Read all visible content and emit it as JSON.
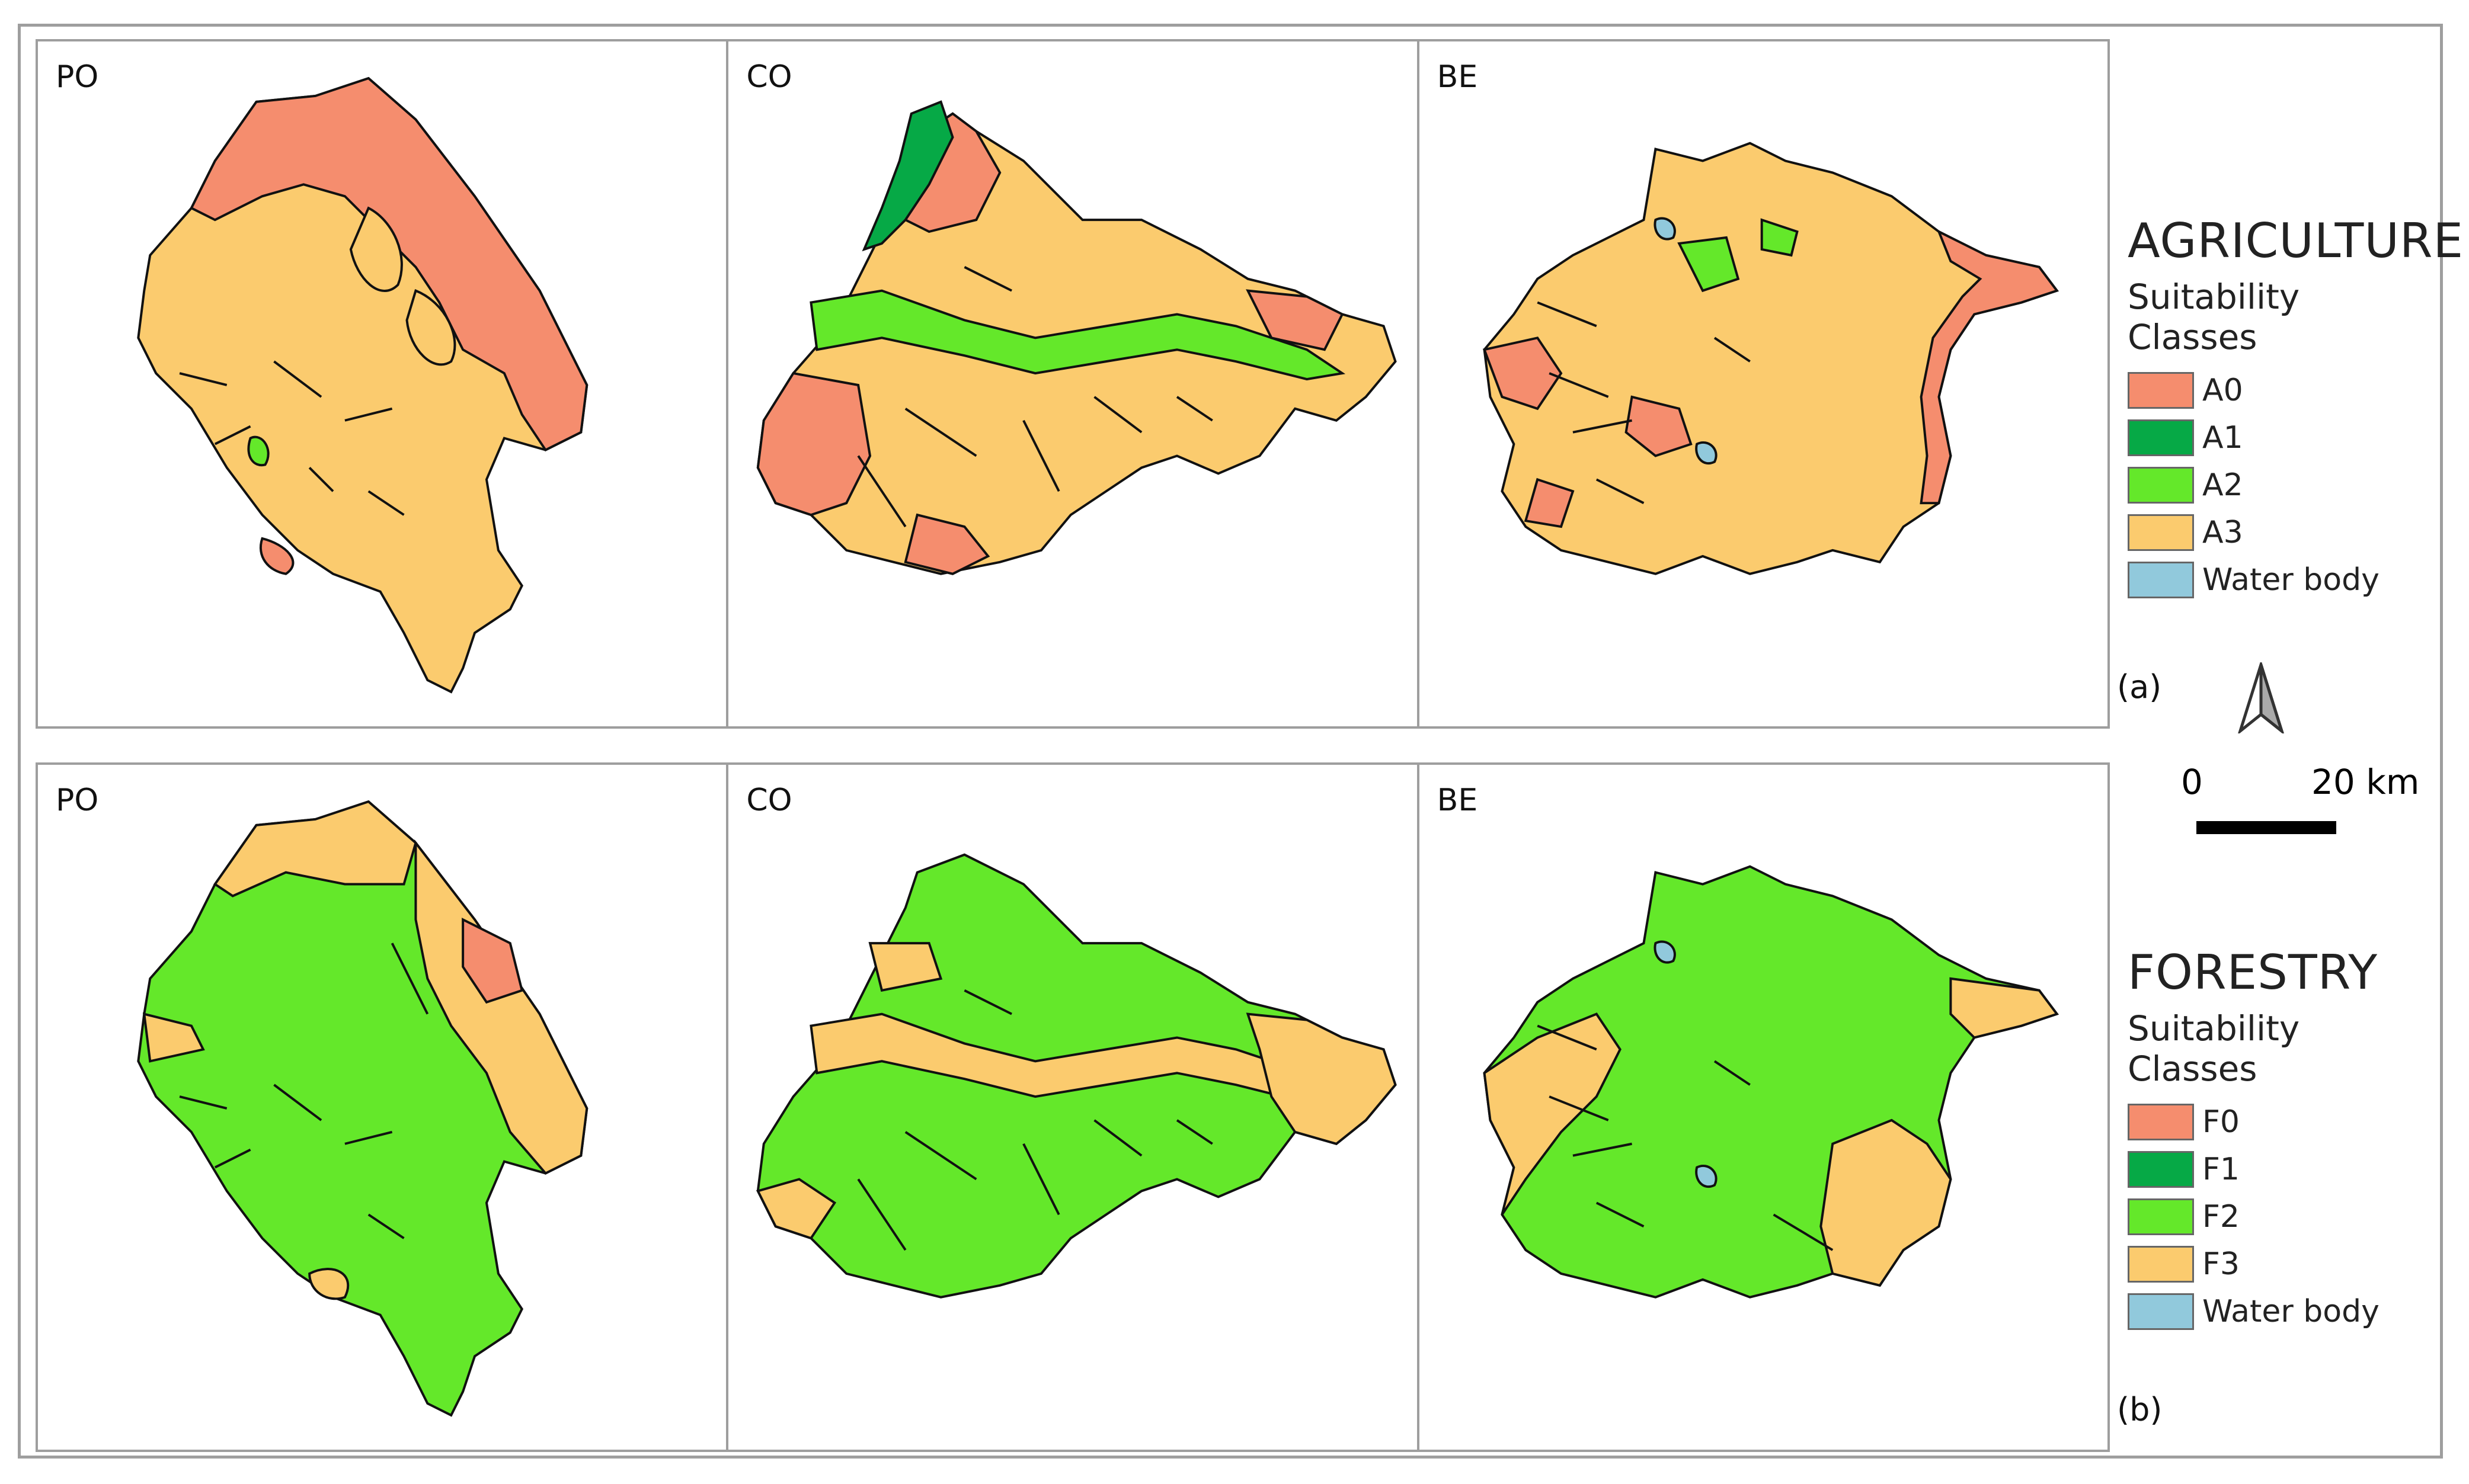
{
  "colors": {
    "A0": "#f58d6e",
    "A1": "#06a946",
    "A2": "#64e82a",
    "A3": "#fbcb6e",
    "water": "#91c9dc",
    "F0": "#f58d6e",
    "F1": "#06a946",
    "F2": "#64e82a",
    "F3": "#fbcb6e"
  },
  "panels": {
    "row_a": [
      "PO",
      "CO",
      "BE"
    ],
    "row_b": [
      "PO",
      "CO",
      "BE"
    ]
  },
  "legend_agri": {
    "title": "AGRICULTURE",
    "subtitle": "Suitability Classes",
    "items": [
      {
        "label": "A0",
        "color": "#f58d6e"
      },
      {
        "label": "A1",
        "color": "#06a946"
      },
      {
        "label": "A2",
        "color": "#64e82a"
      },
      {
        "label": "A3",
        "color": "#fbcb6e"
      },
      {
        "label": "Water body",
        "color": "#91c9dc"
      }
    ]
  },
  "legend_forest": {
    "title": "FORESTRY",
    "subtitle": "Suitability Classes",
    "items": [
      {
        "label": "F0",
        "color": "#f58d6e"
      },
      {
        "label": "F1",
        "color": "#06a946"
      },
      {
        "label": "F2",
        "color": "#64e82a"
      },
      {
        "label": "F3",
        "color": "#fbcb6e"
      },
      {
        "label": "Water body",
        "color": "#91c9dc"
      }
    ]
  },
  "sublabels": {
    "a": "(a)",
    "b": "(b)"
  },
  "scale": {
    "start": "0",
    "end": "20 km"
  },
  "icons": {
    "north": "north-arrow-icon"
  }
}
